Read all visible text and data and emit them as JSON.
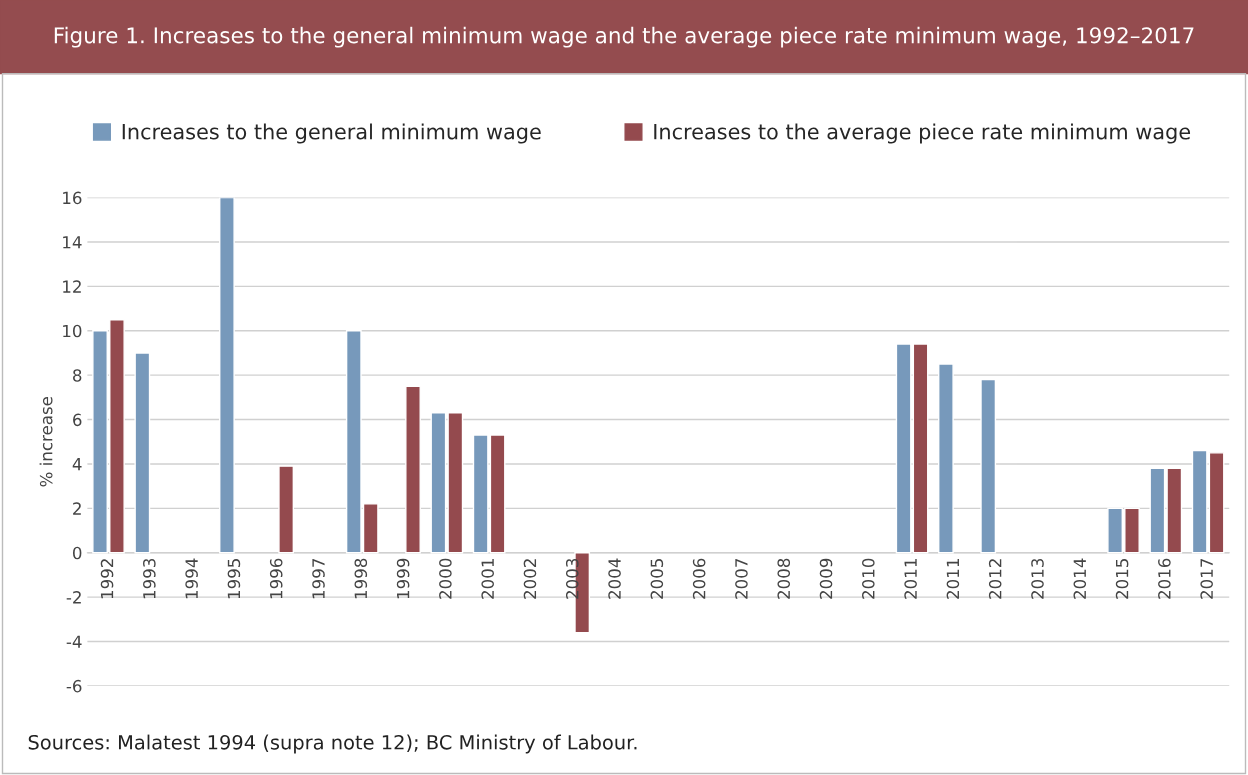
{
  "chart_data": {
    "type": "bar",
    "title": "Figure 1. Increases to the general minimum wage and the average piece rate minimum wage, 1992–2017",
    "ylabel": "% increase",
    "categories": [
      "1992",
      "1993",
      "1994",
      "1995",
      "1996",
      "1997",
      "1998",
      "1999",
      "2000",
      "2001",
      "2002",
      "2003",
      "2004",
      "2005",
      "2006",
      "2007",
      "2008",
      "2009",
      "2010",
      "2011",
      "2011",
      "2012",
      "2013",
      "2014",
      "2015",
      "2016",
      "2017"
    ],
    "series": [
      {
        "name": "Increases to the general minimum wage",
        "color": "#7799bb",
        "values": [
          10,
          9,
          null,
          16,
          null,
          null,
          10,
          null,
          6.3,
          5.3,
          null,
          null,
          null,
          null,
          null,
          null,
          null,
          null,
          null,
          9.4,
          8.5,
          7.8,
          null,
          null,
          2,
          3.8,
          4.6
        ]
      },
      {
        "name": "Increases to the average piece rate minimum wage",
        "color": "#944a4e",
        "values": [
          10.5,
          null,
          null,
          null,
          3.9,
          null,
          2.2,
          7.5,
          6.3,
          5.3,
          null,
          -3.6,
          null,
          null,
          null,
          null,
          null,
          null,
          null,
          9.4,
          null,
          null,
          null,
          null,
          2,
          3.8,
          4.5
        ]
      }
    ],
    "ylim": [
      -6,
      16
    ],
    "yticks": [
      -6,
      -4,
      -2,
      0,
      2,
      4,
      6,
      8,
      10,
      12,
      14,
      16
    ],
    "grid": "y",
    "legend": "top left",
    "annotations": [
      "Sources: Malatest 1994 (supra note 12); BC Ministry of Labour."
    ]
  }
}
